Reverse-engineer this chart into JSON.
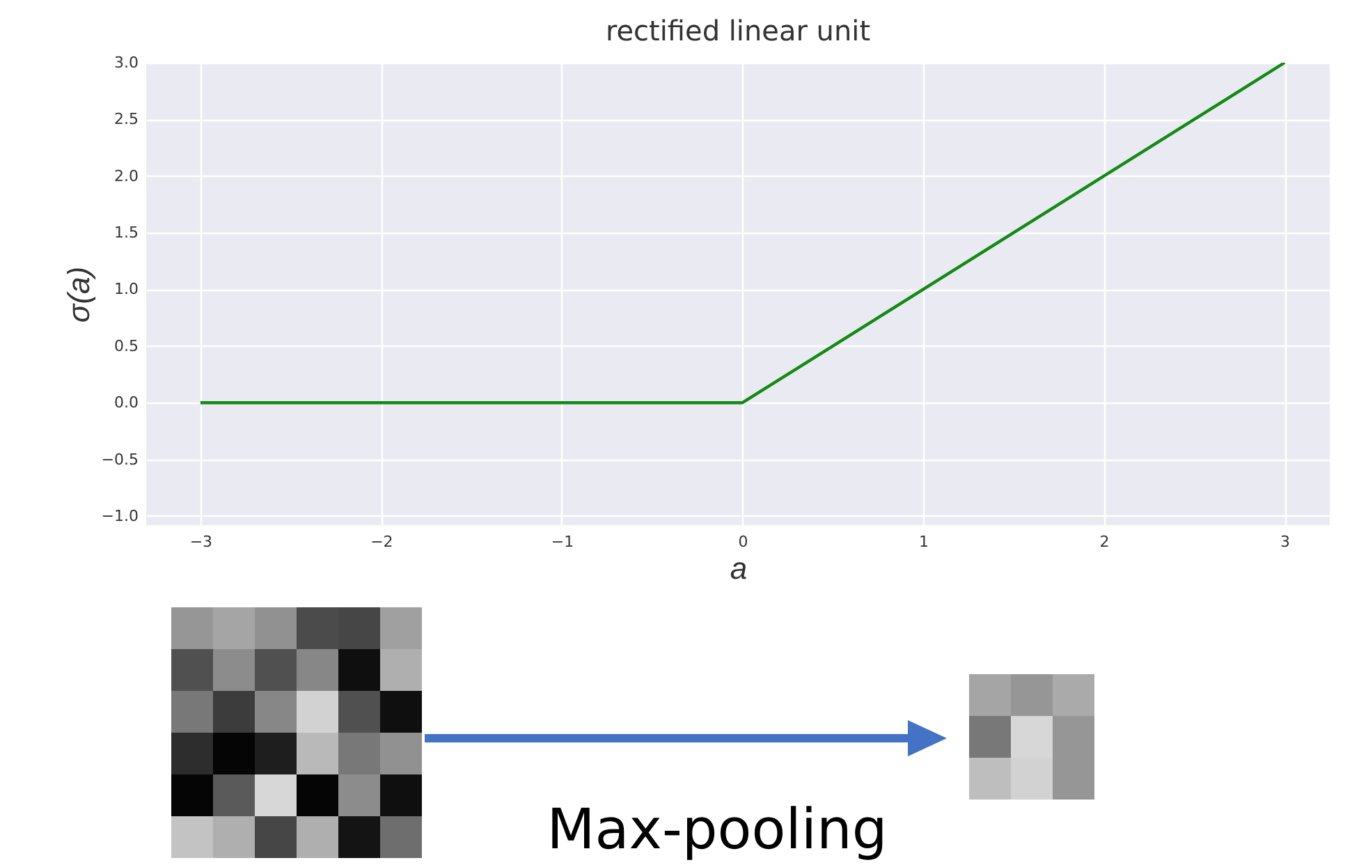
{
  "chart_data": {
    "type": "line",
    "title": "rectified linear unit",
    "xlabel": "a",
    "ylabel": "σ(a)",
    "x": [
      -3,
      0,
      3
    ],
    "series": [
      {
        "color": "#138a13",
        "values": [
          0,
          0,
          3
        ]
      }
    ],
    "xlim": [
      -3.3,
      3.25
    ],
    "ylim": [
      -1.08,
      3.0
    ],
    "xticks": [
      {
        "value": -3,
        "label": "−3"
      },
      {
        "value": -2,
        "label": "−2"
      },
      {
        "value": -1,
        "label": "−1"
      },
      0,
      1,
      2,
      3
    ],
    "yticks": [
      {
        "value": -1,
        "label": "−1.0"
      },
      {
        "value": -0.5,
        "label": "−0.5"
      },
      {
        "value": 0,
        "label": "0.0"
      },
      {
        "value": 0.5,
        "label": "0.5"
      },
      {
        "value": 1,
        "label": "1.0"
      },
      {
        "value": 1.5,
        "label": "1.5"
      },
      {
        "value": 2,
        "label": "2.0"
      },
      {
        "value": 2.5,
        "label": "2.5"
      },
      {
        "value": 3,
        "label": "3.0"
      }
    ],
    "grid": true,
    "line_style": "solid",
    "annotations": [
      "Max-pooling"
    ]
  }
}
